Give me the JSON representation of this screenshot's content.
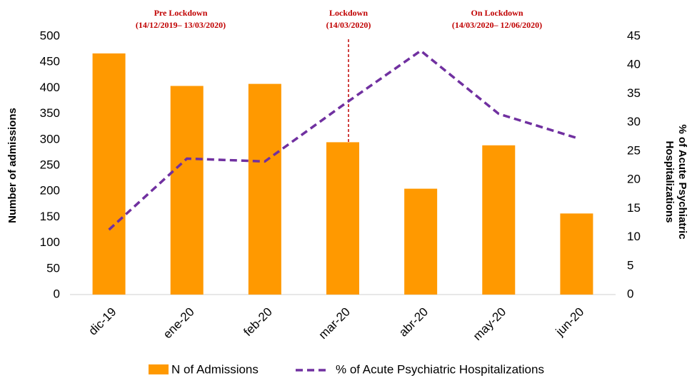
{
  "chart_data": {
    "type": "bar",
    "categories": [
      "dic-19",
      "ene-20",
      "feb-20",
      "mar-20",
      "abr-20",
      "may-20",
      "jun-20"
    ],
    "series": [
      {
        "name": "N of Admissions",
        "type": "bar",
        "color": "#ff9900",
        "values": [
          467,
          404,
          408,
          295,
          205,
          289,
          157
        ]
      },
      {
        "name": "% of Acute Psychiatric Hospitalizations",
        "type": "line",
        "axis": "y2",
        "color": "#7030a0",
        "values": [
          11.3,
          23.7,
          23.2,
          33.0,
          42.5,
          31.5,
          27.3
        ]
      }
    ],
    "y_label": "Number of admissions",
    "y2_label": [
      "% of Acute Psychiatric",
      "Hospitalizations"
    ],
    "ylim": [
      0,
      500
    ],
    "yticks": [
      0,
      50,
      100,
      150,
      200,
      250,
      300,
      350,
      400,
      450,
      500
    ],
    "y2lim": [
      0,
      45
    ],
    "y2ticks": [
      0,
      5,
      10,
      15,
      20,
      25,
      30,
      35,
      40,
      45
    ],
    "grid": false,
    "legend": "bottom",
    "annotations": [
      {
        "text": [
          "Pre Lockdown",
          "(14/12/2019– 13/03/2020)"
        ]
      },
      {
        "text": [
          "Lockdown",
          "(14/03/2020)"
        ]
      },
      {
        "text": [
          "On Lockdown",
          "(14/03/2020– 12/06/2020)"
        ]
      }
    ]
  }
}
